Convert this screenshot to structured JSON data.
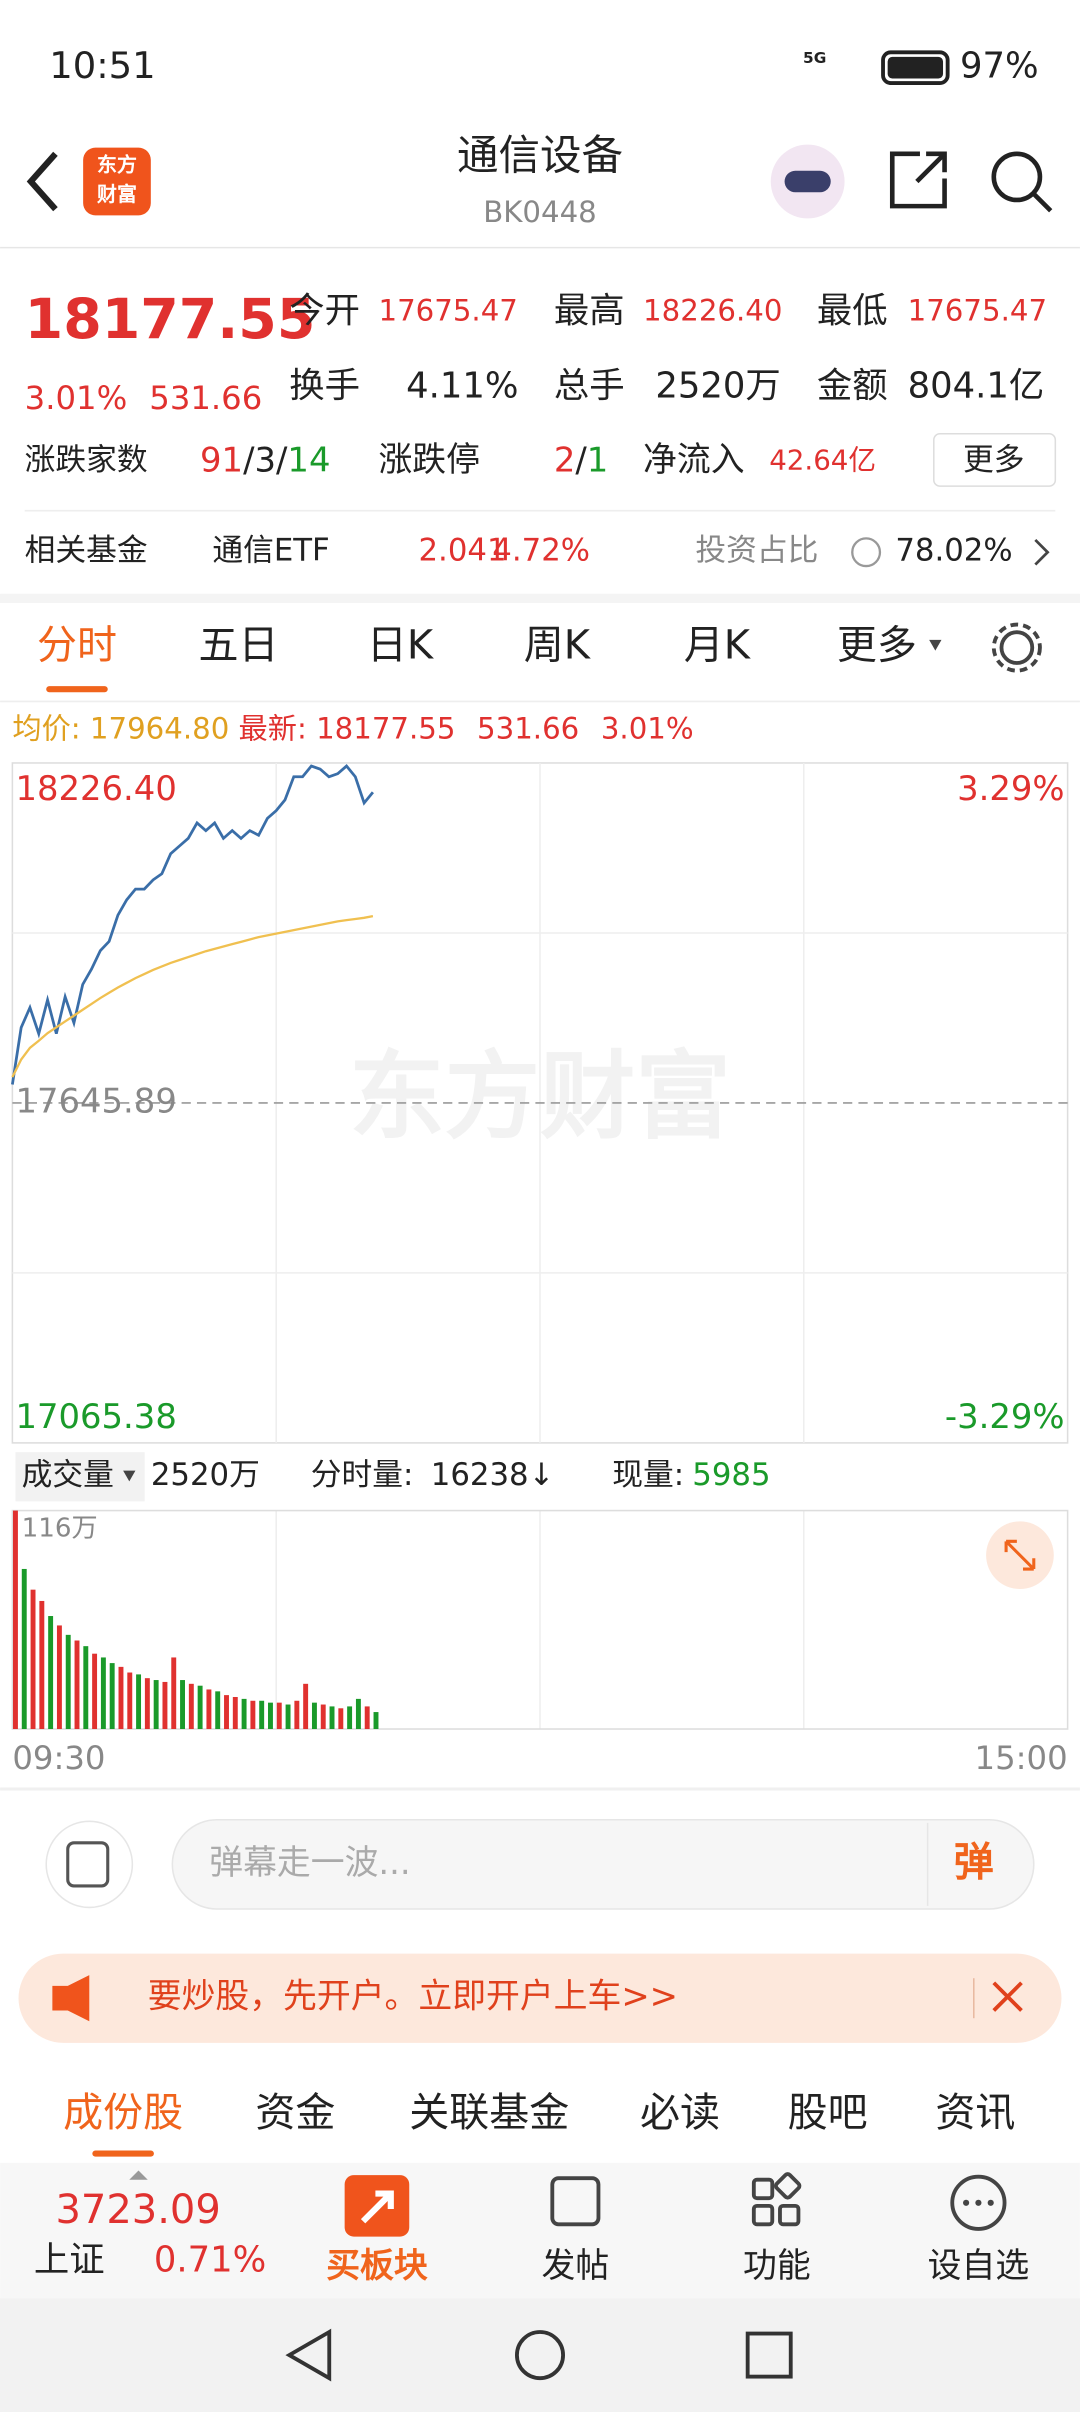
{
  "status_bar": {
    "time": "10:51",
    "network": "5G",
    "battery": "97%"
  },
  "header": {
    "logo": [
      "东方",
      "财富"
    ],
    "title": "通信设备",
    "code": "BK0448"
  },
  "quote": {
    "price": "18177.55",
    "change_pct": "3.01%",
    "change": "531.66",
    "fields": [
      {
        "label": "今开",
        "value": "17675.47"
      },
      {
        "label": "最高",
        "value": "18226.40"
      },
      {
        "label": "最低",
        "value": "17675.47"
      },
      {
        "label": "换手",
        "value": "4.11%"
      },
      {
        "label": "总手",
        "value": "2520万"
      },
      {
        "label": "金额",
        "value": "804.1亿"
      }
    ],
    "breadth": {
      "label": "涨跌家数",
      "up": "91",
      "flat": "3",
      "down": "14",
      "sep": "/"
    },
    "limit": {
      "label": "涨跌停",
      "up": "2",
      "down": "1"
    },
    "inflow": {
      "label": "净流入",
      "value": "42.64亿"
    },
    "more": "更多"
  },
  "fund": {
    "label": "相关基金",
    "name": "通信ETF",
    "price": "2.041",
    "pct": "4.72%",
    "ratio_label": "投资占比",
    "ratio": "78.02%"
  },
  "tabs": [
    "分时",
    "五日",
    "日K",
    "周K",
    "月K",
    "更多"
  ],
  "info": {
    "avg_label": "均价:",
    "avg": "17964.80",
    "last_label": "最新:",
    "last": "18177.55",
    "change": "531.66",
    "pct": "3.01%"
  },
  "chart_data": [
    {
      "type": "line",
      "watermark": "东方财富",
      "xlim": [
        0,
        240
      ],
      "x": [
        0,
        2,
        4,
        6,
        8,
        10,
        12,
        14,
        16,
        18,
        20,
        22,
        24,
        26,
        28,
        30,
        32,
        34,
        36,
        38,
        40,
        42,
        44,
        46,
        48,
        50,
        52,
        54,
        56,
        58,
        60,
        62,
        64,
        66,
        68,
        70,
        72,
        74,
        76,
        78,
        80,
        82
      ],
      "series": [
        {
          "color": "#3a6ea8",
          "values": [
            17677.4,
            17774.6,
            17808.8,
            17764.1,
            17821.9,
            17764.1,
            17827.2,
            17782.5,
            17848.2,
            17874.5,
            17906.0,
            17921.7,
            17966.4,
            17992.7,
            18011.0,
            18011.0,
            18026.8,
            18037.3,
            18071.5,
            18084.6,
            18097.7,
            18124.0,
            18110.9,
            18124.0,
            18097.7,
            18110.9,
            18097.7,
            18110.9,
            18103.0,
            18131.9,
            18145.0,
            18163.4,
            18202.8,
            18202.8,
            18221.2,
            18215.9,
            18202.8,
            18208.1,
            18221.2,
            18202.8,
            18158.1,
            18176.5
          ]
        },
        {
          "color": "#f0c050",
          "values": [
            17690,
            17720,
            17740,
            17752,
            17765,
            17775,
            17785,
            17795,
            17805,
            17815,
            17825,
            17834,
            17843,
            17851,
            17859,
            17866,
            17873,
            17879,
            17885,
            17890,
            17895,
            17900,
            17905,
            17909,
            17913,
            17917,
            17921,
            17925,
            17929,
            17932,
            17935,
            17938,
            17941,
            17944,
            17947,
            17950,
            17953,
            17956,
            17958,
            17960,
            17962,
            17964.8
          ]
        }
      ],
      "ylim": [
        17065.38,
        18226.4
      ],
      "yticks": [
        {
          "value": 18226.4,
          "label": "18226.40"
        },
        {
          "value": 17645.89,
          "label": "17645.89"
        },
        {
          "value": 17065.38,
          "label": "17065.38"
        }
      ],
      "y2lim": [
        -3.29,
        3.29
      ],
      "y2ticks": [
        {
          "value": 3.29,
          "label": "3.29%"
        },
        {
          "value": -3.29,
          "label": "-3.29%"
        }
      ]
    },
    {
      "type": "bar",
      "header": {
        "label": "成交量",
        "total": "2520万",
        "minute_label": "分时量:",
        "minute": "16238↓",
        "now_label": "现量:",
        "now": "5985"
      },
      "xlim": [
        0,
        240
      ],
      "x": [
        0,
        2,
        4,
        6,
        8,
        10,
        12,
        14,
        16,
        18,
        20,
        22,
        24,
        26,
        28,
        30,
        32,
        34,
        36,
        38,
        40,
        42,
        44,
        46,
        48,
        50,
        52,
        54,
        56,
        58,
        60,
        62,
        64,
        66,
        68,
        70,
        72,
        74,
        76,
        78,
        80,
        82
      ],
      "values": [
        116,
        85,
        74,
        68,
        60,
        55,
        50,
        47,
        44,
        40,
        38,
        35,
        33,
        30,
        29,
        27,
        26,
        25,
        38,
        26,
        24,
        23,
        21,
        20,
        18,
        17,
        16,
        15,
        15,
        14,
        14,
        13,
        15,
        24,
        14,
        13,
        12,
        11,
        12,
        16,
        12,
        9
      ],
      "up": [
        true,
        false,
        true,
        true,
        false,
        true,
        false,
        true,
        false,
        true,
        false,
        false,
        true,
        true,
        false,
        true,
        false,
        true,
        true,
        false,
        true,
        false,
        true,
        false,
        true,
        true,
        false,
        true,
        false,
        false,
        true,
        false,
        true,
        true,
        false,
        true,
        false,
        true,
        false,
        false,
        true,
        false
      ],
      "up_color": "#e0312f",
      "down_color": "#1a9a2a",
      "ylim": [
        0,
        116
      ],
      "yticks": [
        {
          "value": 116,
          "label": "116万"
        }
      ],
      "xticks": [
        {
          "value": 0,
          "label": "09:30"
        },
        {
          "value": 240,
          "label": "15:00"
        }
      ]
    }
  ],
  "comment": {
    "placeholder": "弹幕走一波...",
    "button": "弹"
  },
  "banner": "要炒股，先开户。立即开户上车>>",
  "bottom_tabs": [
    "成份股",
    "资金",
    "关联基金",
    "必读",
    "股吧",
    "资讯"
  ],
  "index": {
    "value": "3723.09",
    "name": "上证",
    "pct": "0.71%"
  },
  "nav": [
    "买板块",
    "发帖",
    "功能",
    "设自选"
  ]
}
